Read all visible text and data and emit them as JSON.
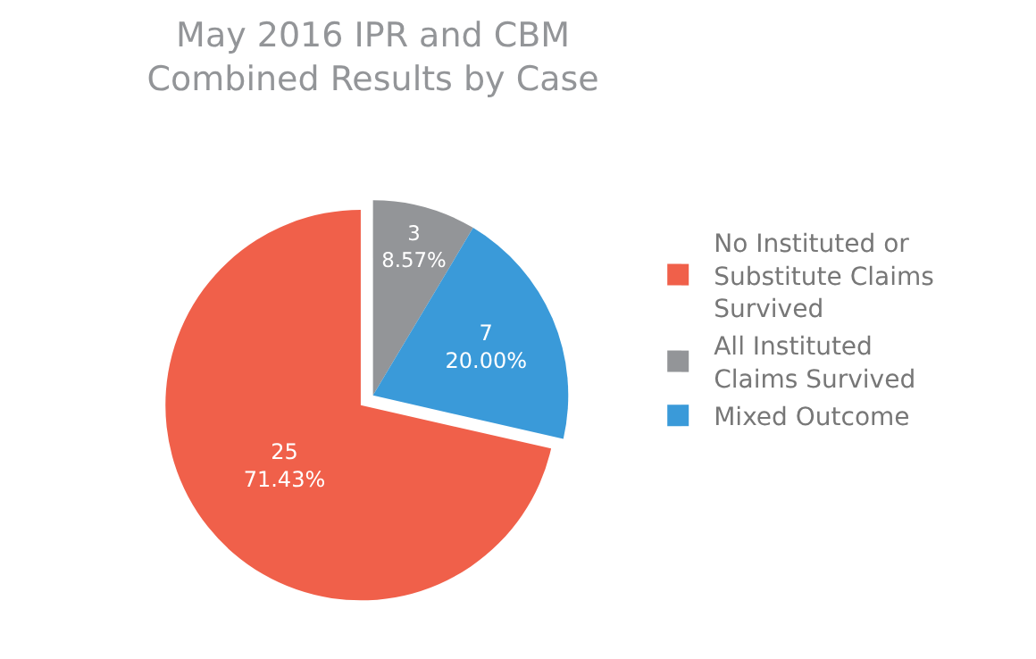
{
  "chart_data": {
    "type": "pie",
    "title": "May 2016 IPR and CBM Combined Results by Case",
    "categories": [
      "No Instituted or Substitute Claims Survived",
      "All Instituted Claims Survived",
      "Mixed Outcome"
    ],
    "values": [
      25,
      3,
      7
    ],
    "value_labels": [
      "25\n71.43%",
      "3\n8.57%",
      "7\n20.00%"
    ],
    "colors": [
      "#f0604a",
      "#939598",
      "#3a9ad9"
    ],
    "legend": "right"
  }
}
